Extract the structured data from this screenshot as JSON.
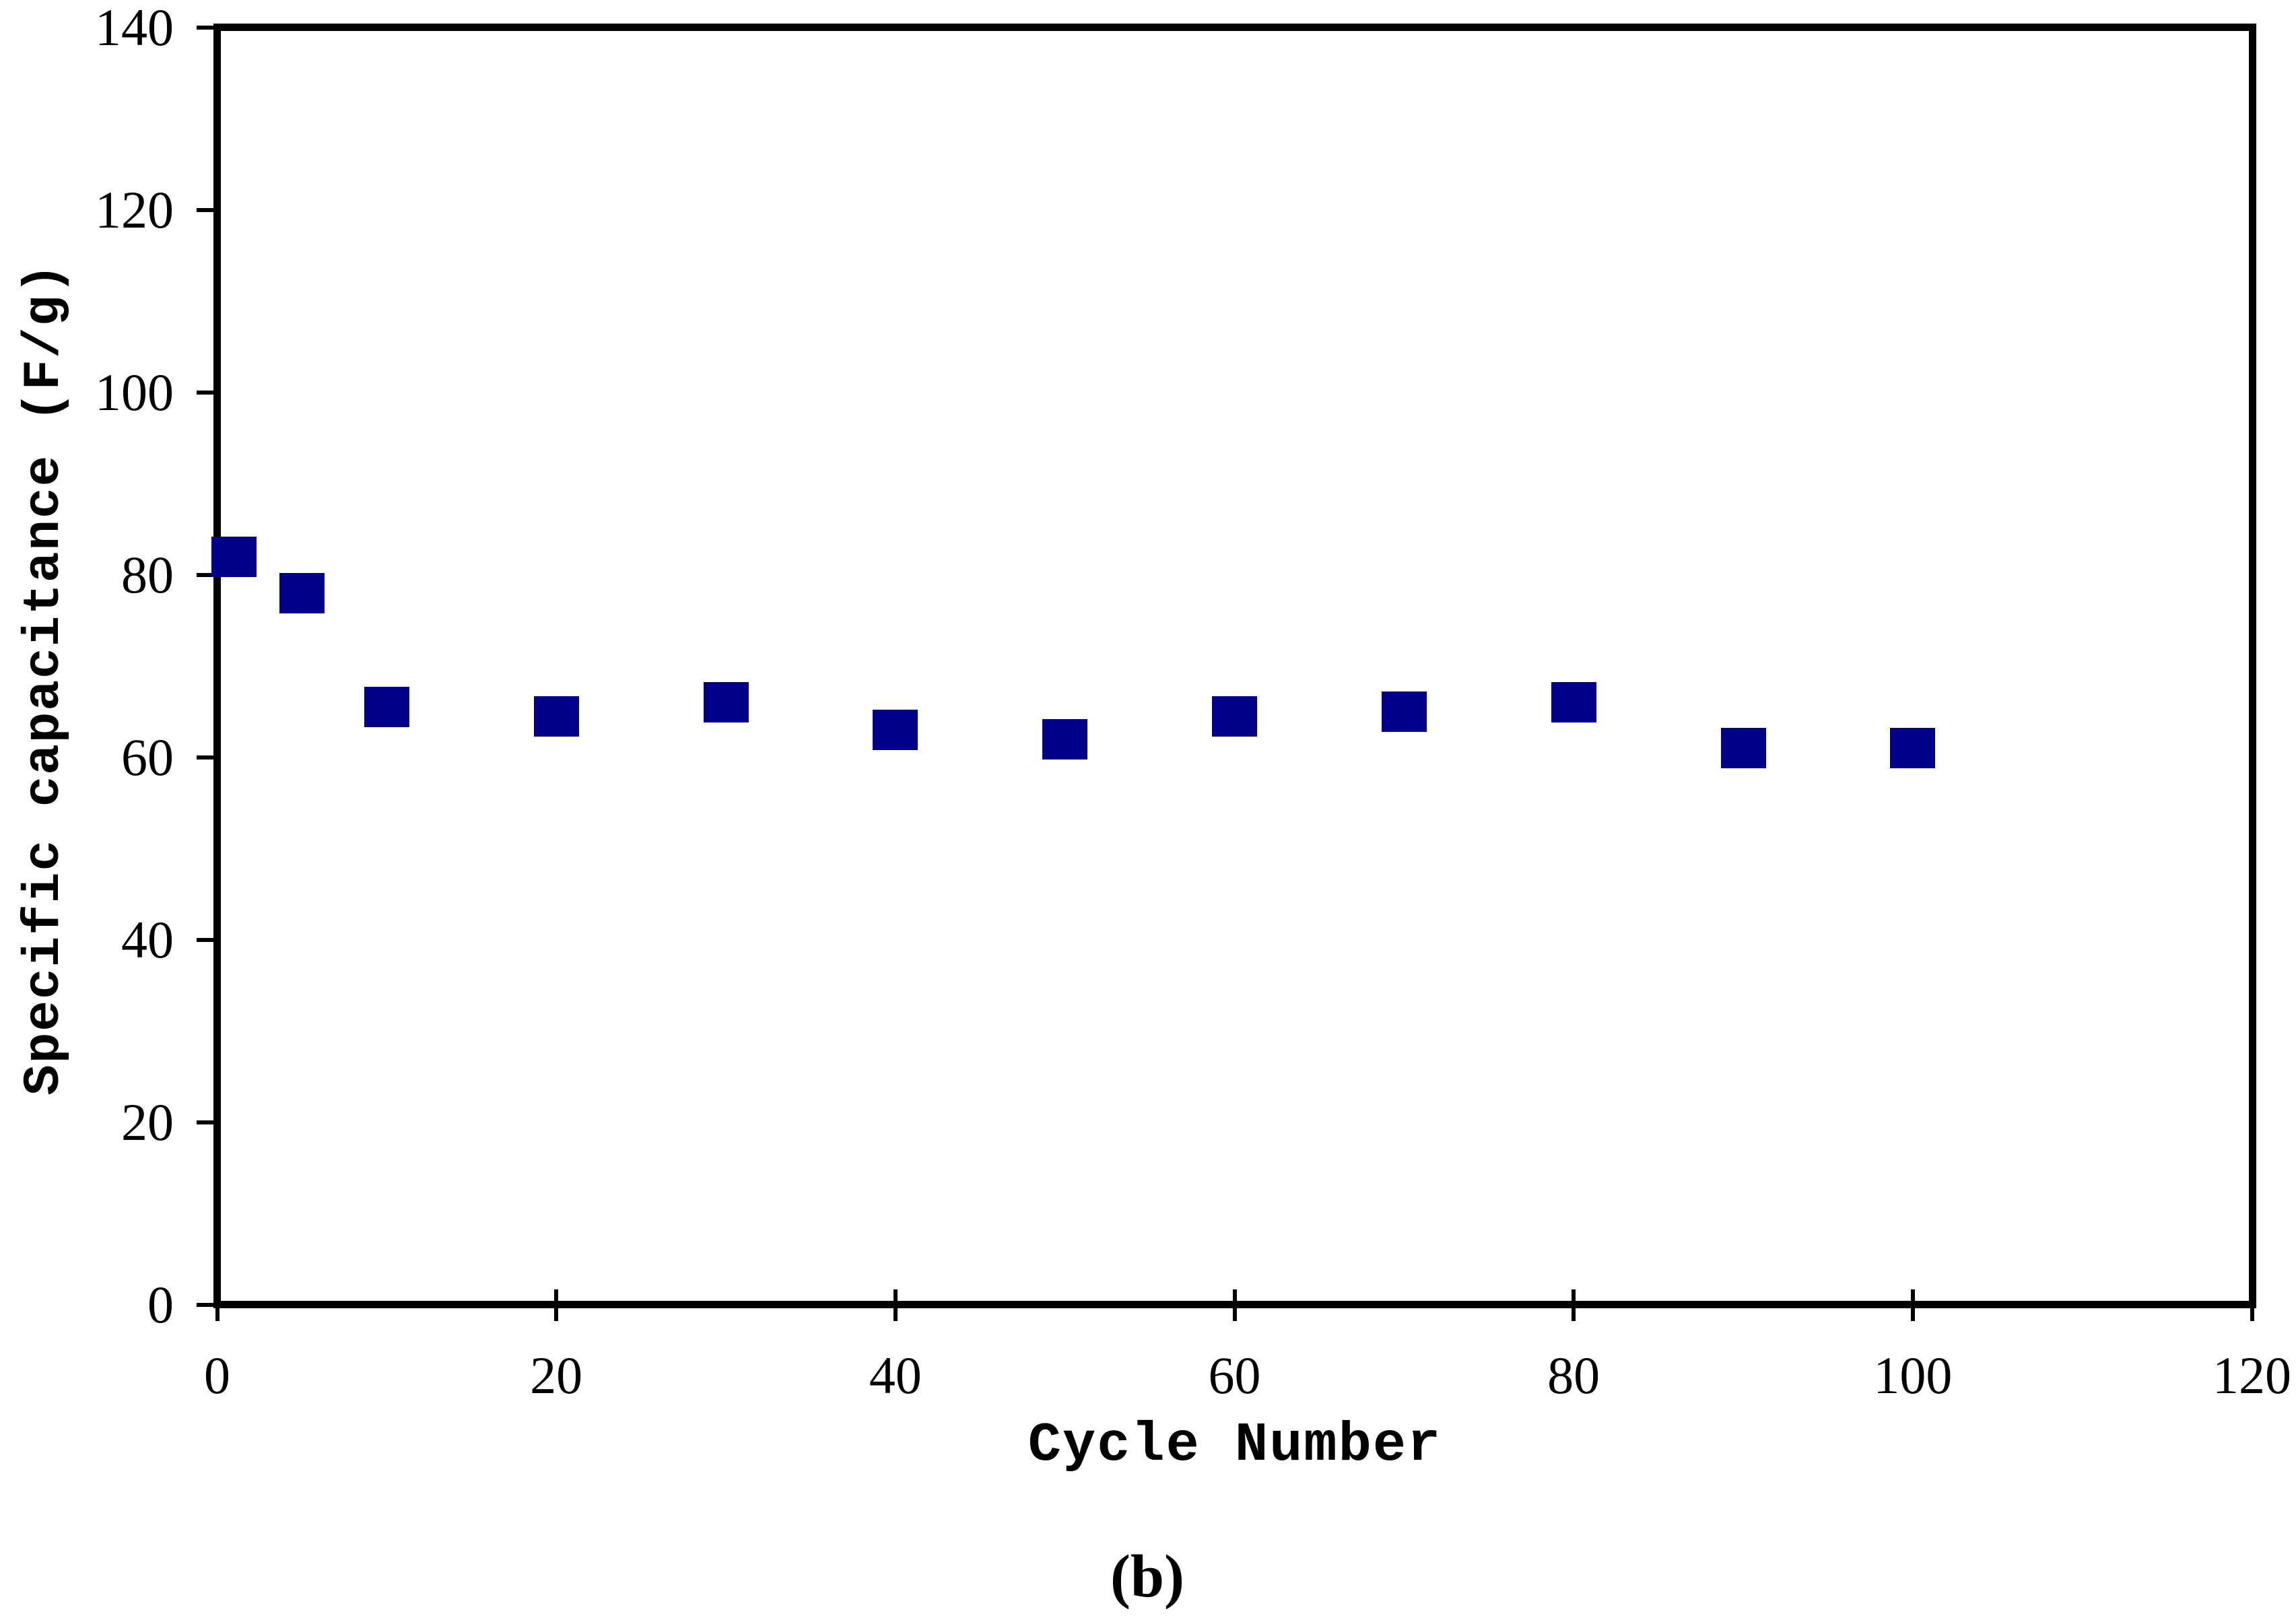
{
  "chart_data": {
    "type": "scatter",
    "title": "",
    "xlabel": "Cycle Number",
    "ylabel": "Specific capacitance (F/g)",
    "x": [
      1,
      5,
      10,
      20,
      30,
      40,
      50,
      60,
      70,
      80,
      90,
      100
    ],
    "y": [
      82,
      78,
      65.5,
      64.5,
      66,
      63,
      62,
      64.5,
      65,
      66,
      61,
      61
    ],
    "xlim": [
      0,
      120
    ],
    "ylim": [
      0,
      140
    ],
    "xticks": [
      0,
      20,
      40,
      60,
      80,
      100,
      120
    ],
    "yticks": [
      0,
      20,
      40,
      60,
      80,
      100,
      120,
      140
    ],
    "marker": "filled-square",
    "marker_color": "#00008B",
    "axis_color": "#000000",
    "grid": false,
    "legend": "none"
  },
  "figure_label": {
    "open": "(",
    "letter": "b",
    "close": ")"
  }
}
